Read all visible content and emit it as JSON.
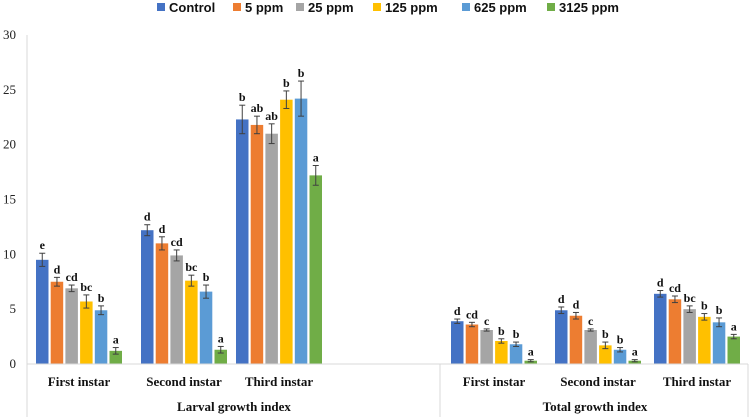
{
  "chart_data": {
    "type": "bar",
    "title": "",
    "xlabel": "",
    "ylabel": "",
    "ylim": [
      0,
      30
    ],
    "yticks": [
      0,
      5,
      10,
      15,
      20,
      25,
      30
    ],
    "grid": false,
    "legend_position": "top",
    "groups": [
      {
        "label": "Larval growth index",
        "categories": [
          "First instar",
          "Second instar",
          "Third instar"
        ]
      },
      {
        "label": "Total growth index",
        "categories": [
          "First instar",
          "Second instar",
          "Third instar"
        ]
      }
    ],
    "series": [
      {
        "name": "Control",
        "color": "#4472C4",
        "values": [
          9.5,
          12.2,
          22.3,
          3.9,
          4.9,
          6.4
        ],
        "errors": [
          0.6,
          0.5,
          1.3,
          0.2,
          0.3,
          0.3
        ],
        "letters": [
          "e",
          "d",
          "b",
          "d",
          "d",
          "d"
        ]
      },
      {
        "name": "5 ppm",
        "color": "#ED7D31",
        "values": [
          7.5,
          11.0,
          21.8,
          3.6,
          4.4,
          5.9
        ],
        "errors": [
          0.4,
          0.6,
          0.8,
          0.2,
          0.3,
          0.3
        ],
        "letters": [
          "d",
          "d",
          "ab",
          "cd",
          "d",
          "cd"
        ]
      },
      {
        "name": "25 ppm",
        "color": "#A5A5A5",
        "values": [
          6.9,
          9.9,
          21.0,
          3.1,
          3.1,
          5.0
        ],
        "errors": [
          0.3,
          0.5,
          0.9,
          0.1,
          0.1,
          0.3
        ],
        "letters": [
          "cd",
          "cd",
          "ab",
          "c",
          "c",
          "bc"
        ]
      },
      {
        "name": "125 ppm",
        "color": "#FFC000",
        "values": [
          5.7,
          7.6,
          24.1,
          2.1,
          1.7,
          4.3
        ],
        "errors": [
          0.6,
          0.5,
          0.8,
          0.2,
          0.3,
          0.3
        ],
        "letters": [
          "bc",
          "bc",
          "b",
          "b",
          "b",
          "b"
        ]
      },
      {
        "name": "625 ppm",
        "color": "#5B9BD5",
        "values": [
          4.9,
          6.6,
          24.2,
          1.8,
          1.3,
          3.8
        ],
        "errors": [
          0.4,
          0.6,
          1.6,
          0.2,
          0.2,
          0.4
        ],
        "letters": [
          "b",
          "b",
          "b",
          "b",
          "b",
          "b"
        ]
      },
      {
        "name": "3125 ppm",
        "color": "#70AD47",
        "values": [
          1.2,
          1.3,
          17.2,
          0.3,
          0.3,
          2.5
        ],
        "errors": [
          0.3,
          0.3,
          0.9,
          0.1,
          0.1,
          0.2
        ],
        "letters": [
          "a",
          "a",
          "a",
          "a",
          "a",
          "a"
        ]
      }
    ]
  }
}
